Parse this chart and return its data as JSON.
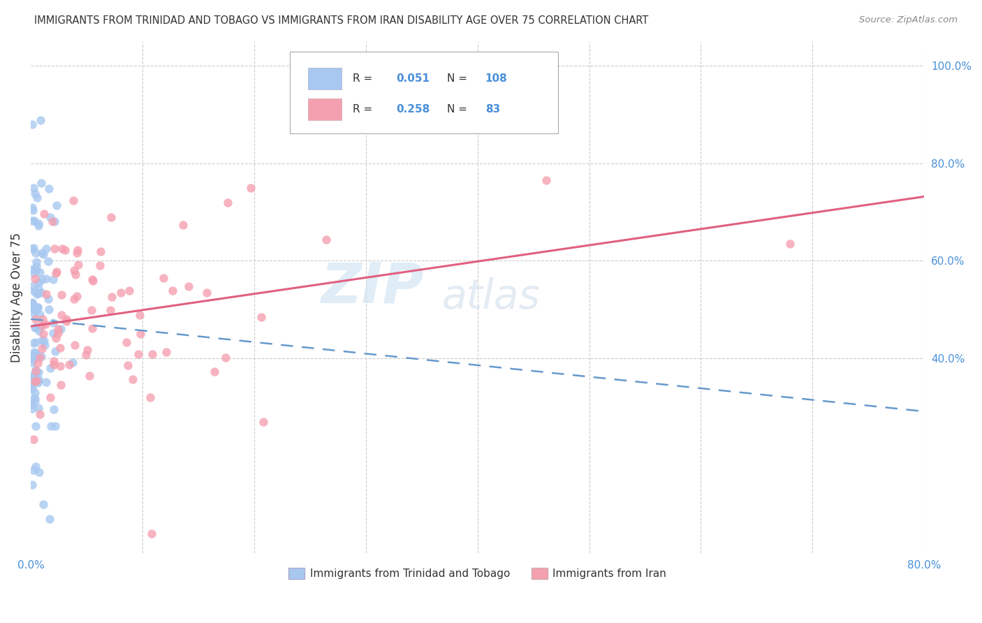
{
  "title": "IMMIGRANTS FROM TRINIDAD AND TOBAGO VS IMMIGRANTS FROM IRAN DISABILITY AGE OVER 75 CORRELATION CHART",
  "source": "Source: ZipAtlas.com",
  "ylabel": "Disability Age Over 75",
  "legend_label_1": "Immigrants from Trinidad and Tobago",
  "legend_label_2": "Immigrants from Iran",
  "r1": 0.051,
  "n1": 108,
  "r2": 0.258,
  "n2": 83,
  "xmin": 0.0,
  "xmax": 0.8,
  "ymin": 0.0,
  "ymax": 1.05,
  "color1": "#a8c8f0",
  "color2": "#f5a0b0",
  "line1_color": "#6699cc",
  "line2_color": "#e06080",
  "tick_color": "#4a90d9",
  "grid_color": "#cccccc",
  "title_color": "#333333",
  "source_color": "#888888",
  "label_color": "#333333",
  "watermark_zip_color": "#cce0f0",
  "watermark_atlas_color": "#c8d8e8",
  "seed1": 12,
  "seed2": 77
}
